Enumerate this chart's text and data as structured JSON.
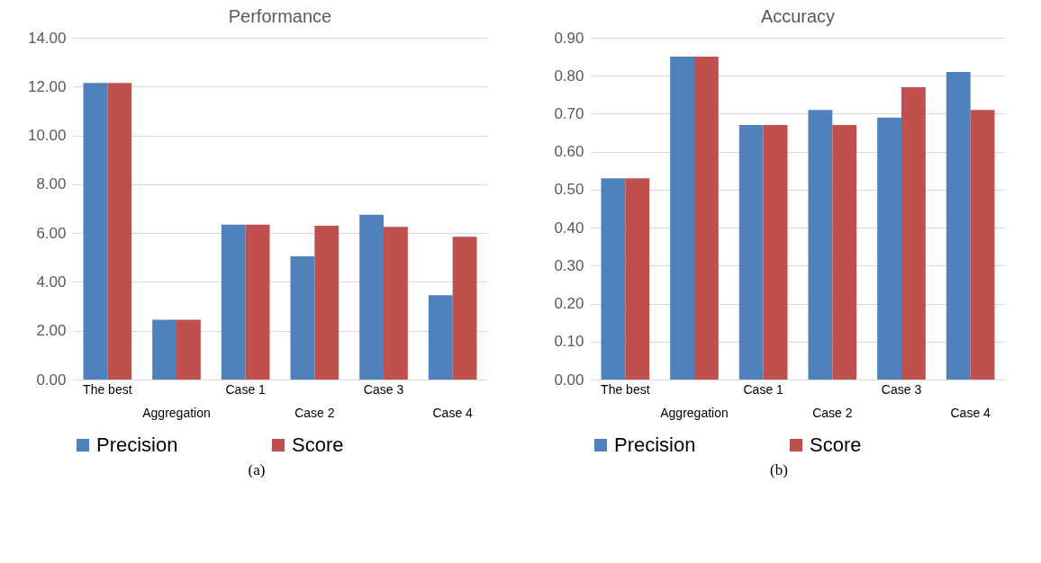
{
  "chart_data": [
    {
      "type": "bar",
      "title": "Performance",
      "categories": [
        "The best",
        "Aggregation",
        "Case 1",
        "Case 2",
        "Case 3",
        "Case 4"
      ],
      "series": [
        {
          "name": "Precision",
          "color": "#4f81bd",
          "values": [
            12.15,
            2.45,
            6.35,
            5.05,
            6.75,
            3.45
          ]
        },
        {
          "name": "Score",
          "color": "#c0504d",
          "values": [
            12.15,
            2.45,
            6.35,
            6.3,
            6.25,
            5.85
          ]
        }
      ],
      "ylim": [
        0,
        14
      ],
      "yticks": [
        {
          "value": 0,
          "label": "0.00"
        },
        {
          "value": 2,
          "label": "2.00"
        },
        {
          "value": 4,
          "label": "4.00"
        },
        {
          "value": 6,
          "label": "6.00"
        },
        {
          "value": 8,
          "label": "8.00"
        },
        {
          "value": 10,
          "label": "10.00"
        },
        {
          "value": 12,
          "label": "12.00"
        },
        {
          "value": 14,
          "label": "14.00"
        }
      ],
      "grid": "y",
      "legend": "bottom",
      "annotations": [
        "(a)"
      ]
    },
    {
      "type": "bar",
      "title": "Accuracy",
      "categories": [
        "The best",
        "Aggregation",
        "Case 1",
        "Case 2",
        "Case 3",
        "Case 4"
      ],
      "series": [
        {
          "name": "Precision",
          "color": "#4f81bd",
          "values": [
            0.53,
            0.85,
            0.67,
            0.71,
            0.69,
            0.81
          ]
        },
        {
          "name": "Score",
          "color": "#c0504d",
          "values": [
            0.53,
            0.85,
            0.67,
            0.67,
            0.77,
            0.71
          ]
        }
      ],
      "ylim": [
        0,
        0.9
      ],
      "yticks": [
        {
          "value": 0,
          "label": "0.00"
        },
        {
          "value": 0.1,
          "label": "0.10"
        },
        {
          "value": 0.2,
          "label": "0.20"
        },
        {
          "value": 0.3,
          "label": "0.30"
        },
        {
          "value": 0.4,
          "label": "0.40"
        },
        {
          "value": 0.5,
          "label": "0.50"
        },
        {
          "value": 0.6,
          "label": "0.60"
        },
        {
          "value": 0.7,
          "label": "0.70"
        },
        {
          "value": 0.8,
          "label": "0.80"
        },
        {
          "value": 0.9,
          "label": "0.90"
        }
      ],
      "grid": "y",
      "legend": "bottom",
      "annotations": [
        "(b)"
      ]
    }
  ]
}
